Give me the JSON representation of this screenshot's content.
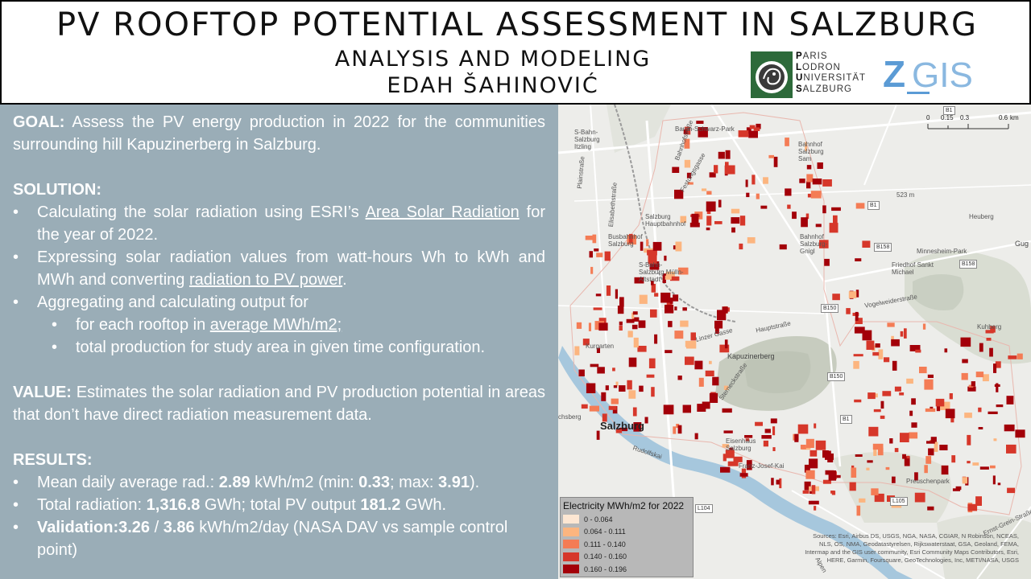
{
  "header": {
    "title": "PV ROOFTOP POTENTIAL ASSESSMENT IN SALZBURG",
    "subtitle_1": "ANALYSIS AND MODELING",
    "subtitle_2": "EDAH ŠAHINOVIĆ",
    "plus_logo_lines": [
      "ARIS",
      "ODRON",
      "NIVERSITÄT",
      "ALZBURG"
    ],
    "plus_logo_initials": [
      "P",
      "L",
      "U",
      "S"
    ],
    "zgis_logo_text": "Z_GIS"
  },
  "goal": {
    "heading": "GOAL:",
    "text": "Assess the PV energy production in 2022 for the communities surrounding hill Kapuzinerberg in Salzburg."
  },
  "solution": {
    "heading": "SOLUTION:",
    "item1_a": "Calculating the solar radiation using ESRI’s ",
    "item1_link": "Area Solar Radiation",
    "item1_b": " for the year of 2022.",
    "item2_a": "Expressing solar radiation values from watt-hours Wh to kWh and MWh and converting ",
    "item2_link": "radiation to PV power",
    "item2_b": ".",
    "item3": "Aggregating and calculating output for",
    "sub1_a": "for each rooftop in ",
    "sub1_link": "average MWh/m2;",
    "sub2": "total production for study area in given time configuration."
  },
  "value": {
    "heading": "VALUE:",
    "text": "Estimates the solar radiation and PV production potential in areas that don’t have direct radiation measurement data."
  },
  "results": {
    "heading": "RESULTS:",
    "r1_a": "Mean daily average rad.: ",
    "r1_v1": "2.89",
    "r1_b": " kWh/m2 (min: ",
    "r1_v2": "0.33",
    "r1_c": "; max: ",
    "r1_v3": "3.91",
    "r1_d": ").",
    "r2_a": "Total radiation: ",
    "r2_v1": "1,316.8",
    "r2_b": " GWh; total PV output ",
    "r2_v2": "181.2",
    "r2_c": " GWh.",
    "r3_label": "Validation:",
    "r3_v1": "3.26",
    "r3_sep": " / ",
    "r3_v2": "3.86",
    "r3_b": " kWh/m2/day (NASA DAV vs sample control point)"
  },
  "map": {
    "labels": {
      "salzburg": "Salzburg",
      "kapuzinerberg": "Kapuzinerberg",
      "hauptbahnhof": "Salzburg Hauptbahnhof",
      "busbahnhof": "Busbahnhof Salzburg",
      "sbahn_itzling": "S-Bahn-Salzburg Itzling",
      "sbahn_mulln": "S-Bahn-Salzburg Mülln-Altstadt",
      "bahnhof_gnigl": "Bahnhof Salzburg-Gnigl",
      "bahnhof_sam": "Bahnhof Salzburg Sam",
      "friedhof": "Friedhof Sankt Michael",
      "minnesheim": "Minnesheim-Park",
      "heuberg": "Heuberg",
      "kuhberg": "Kuhberg",
      "preuschenpark": "Preuschenpark",
      "rudolfskai": "Rudolfskai",
      "franz_josef": "Franz-Josef-Kai",
      "kurgarten": "Kurgarten",
      "elevation": "523 m",
      "gug": "Gug",
      "chsberg": "chsberg",
      "linzergasse": "Linzer Gasse",
      "haupstrasse": "Hauptstraße",
      "bahnhofstrasse": "Bahnhofstraße",
      "elisabethstrasse": "Elisabethstraße",
      "plainstrasse": "Plainstraße",
      "ernst_grein": "Ernst-Grein-Straße",
      "schwarzstrasse": "Baron-Schwarz-Park",
      "festungsgasse": "Festungsgasse",
      "eisenhaus": "Eisenhaus Salzburg",
      "alpen": "Alpen",
      "sterneckstrasse": "Sterneckstraße",
      "vogelweider": "Vogelweiderstraße"
    },
    "road_badges": [
      "B1",
      "B1",
      "B158",
      "B158",
      "B150",
      "B150",
      "L104",
      "L105",
      "B1"
    ],
    "scale": {
      "ticks": [
        "0",
        "0.15",
        "0.3",
        "0.6"
      ],
      "unit": "km"
    },
    "legend": {
      "title": "Electricity MWh/m2 for 2022",
      "classes": [
        {
          "label": "0 - 0.064",
          "color": "#fde6d2"
        },
        {
          "label": "0.064 - 0.111",
          "color": "#fcb57f"
        },
        {
          "label": "0.111 - 0.140",
          "color": "#f47c55"
        },
        {
          "label": "0.140 - 0.160",
          "color": "#d6372a"
        },
        {
          "label": "0.160 - 0.196",
          "color": "#a30009"
        }
      ]
    },
    "attribution": "Sources: Esri, Airbus DS, USGS, NGA, NASA, CGIAR, N Robinson, NCEAS, NLS, OS, NMA, Geodatastyrelsen, Rijkswaterstaat, GSA, Geoland, FEMA, Intermap and the GIS user community, Esri Community Maps Contributors, Esri, HERE, Garmin, Foursquare, GeoTechnologies, Inc, METI/NASA, USGS"
  }
}
